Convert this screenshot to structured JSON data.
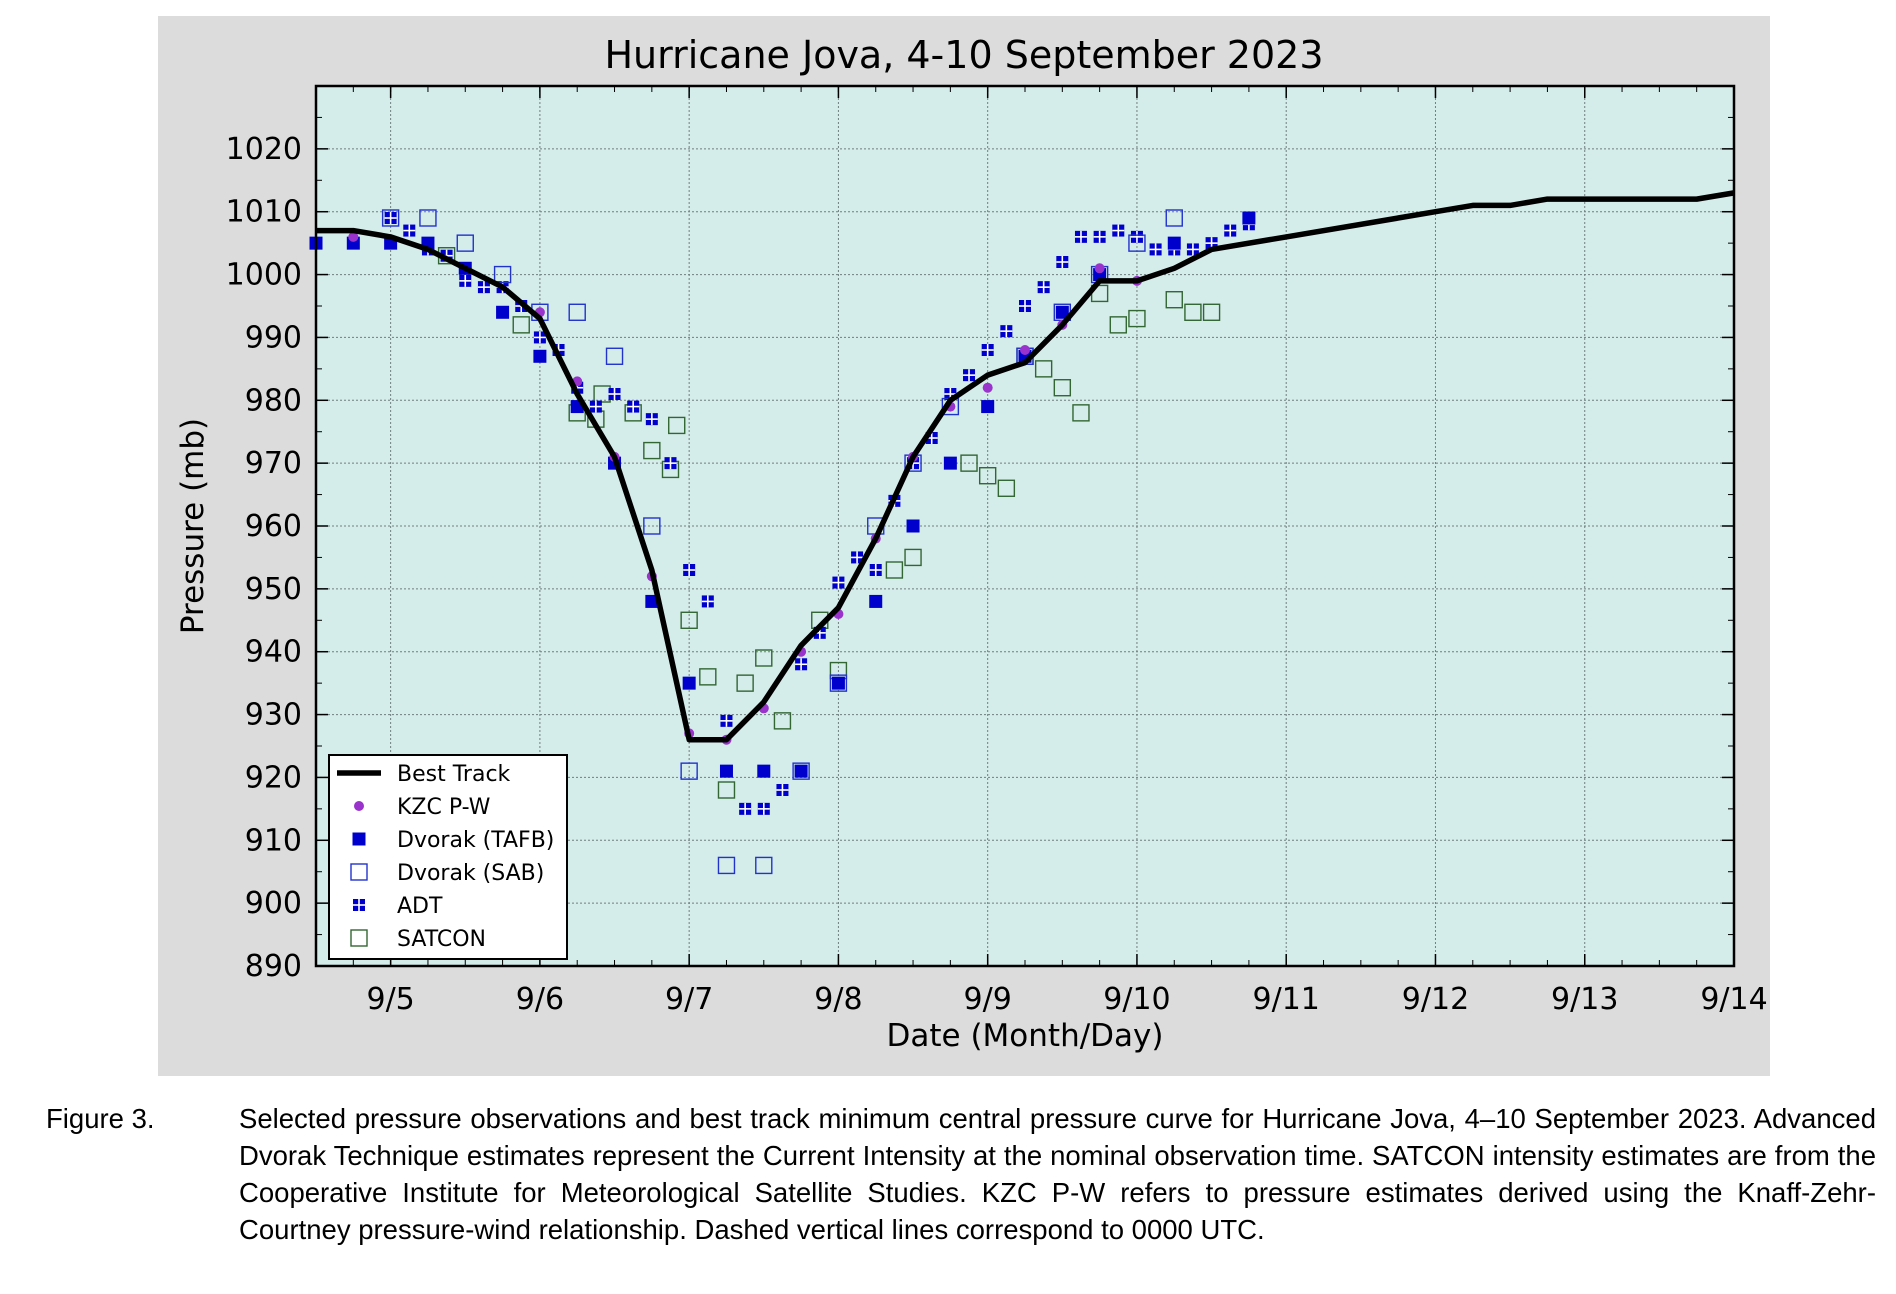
{
  "chart_data": {
    "type": "scatter",
    "title": "Hurricane Jova, 4-10 September 2023",
    "xlabel": "Date (Month/Day)",
    "ylabel": "Pressure (mb)",
    "xlim": [
      "2023-09-04 12:00",
      "2023-09-14 00:00"
    ],
    "ylim": [
      890,
      1030
    ],
    "x_ticks": [
      "9/5",
      "9/6",
      "9/7",
      "9/8",
      "9/9",
      "9/10",
      "9/11",
      "9/12",
      "9/13",
      "9/14"
    ],
    "y_ticks": [
      890,
      900,
      910,
      920,
      930,
      940,
      950,
      960,
      970,
      980,
      990,
      1000,
      1010,
      1020
    ],
    "grid": true,
    "legend_position": "lower-left",
    "background_color": "#d4ecea",
    "outer_background_color": "#dcdcdc",
    "series": [
      {
        "name": "Best Track",
        "style": "line",
        "color": "#000000",
        "points": [
          [
            "2023-09-04 12:00",
            1007
          ],
          [
            "2023-09-04 18:00",
            1007
          ],
          [
            "2023-09-05 00:00",
            1006
          ],
          [
            "2023-09-05 06:00",
            1004
          ],
          [
            "2023-09-05 12:00",
            1001
          ],
          [
            "2023-09-05 18:00",
            998
          ],
          [
            "2023-09-06 00:00",
            993
          ],
          [
            "2023-09-06 06:00",
            981
          ],
          [
            "2023-09-06 12:00",
            971
          ],
          [
            "2023-09-06 18:00",
            953
          ],
          [
            "2023-09-07 00:00",
            926
          ],
          [
            "2023-09-07 06:00",
            926
          ],
          [
            "2023-09-07 12:00",
            932
          ],
          [
            "2023-09-07 18:00",
            941
          ],
          [
            "2023-09-08 00:00",
            947
          ],
          [
            "2023-09-08 06:00",
            958
          ],
          [
            "2023-09-08 12:00",
            971
          ],
          [
            "2023-09-08 18:00",
            980
          ],
          [
            "2023-09-09 00:00",
            984
          ],
          [
            "2023-09-09 06:00",
            986
          ],
          [
            "2023-09-09 12:00",
            992
          ],
          [
            "2023-09-09 18:00",
            999
          ],
          [
            "2023-09-10 00:00",
            999
          ],
          [
            "2023-09-10 06:00",
            1001
          ],
          [
            "2023-09-10 12:00",
            1004
          ],
          [
            "2023-09-11 00:00",
            1006
          ],
          [
            "2023-09-12 00:00",
            1010
          ],
          [
            "2023-09-12 06:00",
            1011
          ],
          [
            "2023-09-12 12:00",
            1011
          ],
          [
            "2023-09-12 18:00",
            1012
          ],
          [
            "2023-09-13 00:00",
            1012
          ],
          [
            "2023-09-13 06:00",
            1012
          ],
          [
            "2023-09-13 12:00",
            1012
          ],
          [
            "2023-09-13 18:00",
            1012
          ],
          [
            "2023-09-14 00:00",
            1013
          ]
        ]
      },
      {
        "name": "KZC P-W",
        "style": "dot",
        "color": "#9933cc",
        "points": [
          [
            "2023-09-04 18:00",
            1006
          ],
          [
            "2023-09-06 00:00",
            994
          ],
          [
            "2023-09-06 06:00",
            983
          ],
          [
            "2023-09-06 12:00",
            971
          ],
          [
            "2023-09-06 18:00",
            952
          ],
          [
            "2023-09-07 00:00",
            927
          ],
          [
            "2023-09-07 06:00",
            926
          ],
          [
            "2023-09-07 12:00",
            931
          ],
          [
            "2023-09-07 18:00",
            940
          ],
          [
            "2023-09-08 00:00",
            946
          ],
          [
            "2023-09-08 06:00",
            958
          ],
          [
            "2023-09-08 12:00",
            971
          ],
          [
            "2023-09-08 18:00",
            979
          ],
          [
            "2023-09-09 00:00",
            982
          ],
          [
            "2023-09-09 06:00",
            988
          ],
          [
            "2023-09-09 12:00",
            992
          ],
          [
            "2023-09-09 18:00",
            1001
          ],
          [
            "2023-09-10 00:00",
            999
          ]
        ]
      },
      {
        "name": "Dvorak (TAFB)",
        "style": "filled-square",
        "color": "#0000cc",
        "points": [
          [
            "2023-09-04 12:00",
            1005
          ],
          [
            "2023-09-04 18:00",
            1005
          ],
          [
            "2023-09-05 00:00",
            1005
          ],
          [
            "2023-09-05 06:00",
            1005
          ],
          [
            "2023-09-05 12:00",
            1001
          ],
          [
            "2023-09-05 18:00",
            994
          ],
          [
            "2023-09-06 00:00",
            987
          ],
          [
            "2023-09-06 06:00",
            979
          ],
          [
            "2023-09-06 12:00",
            970
          ],
          [
            "2023-09-06 18:00",
            948
          ],
          [
            "2023-09-07 00:00",
            935
          ],
          [
            "2023-09-07 06:00",
            921
          ],
          [
            "2023-09-07 12:00",
            921
          ],
          [
            "2023-09-07 18:00",
            921
          ],
          [
            "2023-09-08 00:00",
            935
          ],
          [
            "2023-09-08 06:00",
            948
          ],
          [
            "2023-09-08 12:00",
            960
          ],
          [
            "2023-09-08 18:00",
            970
          ],
          [
            "2023-09-09 00:00",
            979
          ],
          [
            "2023-09-09 06:00",
            987
          ],
          [
            "2023-09-09 12:00",
            994
          ],
          [
            "2023-09-09 18:00",
            1000
          ],
          [
            "2023-09-10 06:00",
            1005
          ],
          [
            "2023-09-10 18:00",
            1009
          ]
        ]
      },
      {
        "name": "Dvorak (SAB)",
        "style": "open-square",
        "color": "#2233cc",
        "points": [
          [
            "2023-09-05 00:00",
            1009
          ],
          [
            "2023-09-05 06:00",
            1009
          ],
          [
            "2023-09-05 12:00",
            1005
          ],
          [
            "2023-09-05 18:00",
            1000
          ],
          [
            "2023-09-06 00:00",
            994
          ],
          [
            "2023-09-06 06:00",
            994
          ],
          [
            "2023-09-06 12:00",
            987
          ],
          [
            "2023-09-06 18:00",
            960
          ],
          [
            "2023-09-07 00:00",
            921
          ],
          [
            "2023-09-07 06:00",
            906
          ],
          [
            "2023-09-07 12:00",
            906
          ],
          [
            "2023-09-07 18:00",
            921
          ],
          [
            "2023-09-08 00:00",
            935
          ],
          [
            "2023-09-08 06:00",
            960
          ],
          [
            "2023-09-08 12:00",
            970
          ],
          [
            "2023-09-08 18:00",
            979
          ],
          [
            "2023-09-09 06:00",
            987
          ],
          [
            "2023-09-09 12:00",
            994
          ],
          [
            "2023-09-09 18:00",
            1000
          ],
          [
            "2023-09-10 00:00",
            1005
          ],
          [
            "2023-09-10 06:00",
            1009
          ]
        ]
      },
      {
        "name": "ADT",
        "style": "grid-square",
        "color": "#0000cc",
        "points": [
          [
            "2023-09-05 00:00",
            1009
          ],
          [
            "2023-09-05 03:00",
            1007
          ],
          [
            "2023-09-05 06:00",
            1004
          ],
          [
            "2023-09-05 09:00",
            1003
          ],
          [
            "2023-09-05 12:00",
            999
          ],
          [
            "2023-09-05 15:00",
            998
          ],
          [
            "2023-09-05 18:00",
            998
          ],
          [
            "2023-09-05 21:00",
            995
          ],
          [
            "2023-09-06 00:00",
            990
          ],
          [
            "2023-09-06 03:00",
            988
          ],
          [
            "2023-09-06 06:00",
            982
          ],
          [
            "2023-09-06 09:00",
            979
          ],
          [
            "2023-09-06 12:00",
            981
          ],
          [
            "2023-09-06 15:00",
            979
          ],
          [
            "2023-09-06 18:00",
            977
          ],
          [
            "2023-09-06 21:00",
            970
          ],
          [
            "2023-09-07 00:00",
            953
          ],
          [
            "2023-09-07 03:00",
            948
          ],
          [
            "2023-09-07 06:00",
            929
          ],
          [
            "2023-09-07 09:00",
            915
          ],
          [
            "2023-09-07 12:00",
            915
          ],
          [
            "2023-09-07 15:00",
            918
          ],
          [
            "2023-09-07 18:00",
            938
          ],
          [
            "2023-09-07 21:00",
            943
          ],
          [
            "2023-09-08 00:00",
            951
          ],
          [
            "2023-09-08 03:00",
            955
          ],
          [
            "2023-09-08 06:00",
            953
          ],
          [
            "2023-09-08 09:00",
            964
          ],
          [
            "2023-09-08 12:00",
            970
          ],
          [
            "2023-09-08 15:00",
            974
          ],
          [
            "2023-09-08 18:00",
            981
          ],
          [
            "2023-09-08 21:00",
            984
          ],
          [
            "2023-09-09 00:00",
            988
          ],
          [
            "2023-09-09 03:00",
            991
          ],
          [
            "2023-09-09 06:00",
            995
          ],
          [
            "2023-09-09 09:00",
            998
          ],
          [
            "2023-09-09 12:00",
            1002
          ],
          [
            "2023-09-09 15:00",
            1006
          ],
          [
            "2023-09-09 18:00",
            1006
          ],
          [
            "2023-09-09 21:00",
            1007
          ],
          [
            "2023-09-10 00:00",
            1006
          ],
          [
            "2023-09-10 03:00",
            1004
          ],
          [
            "2023-09-10 06:00",
            1004
          ],
          [
            "2023-09-10 09:00",
            1004
          ],
          [
            "2023-09-10 12:00",
            1005
          ],
          [
            "2023-09-10 15:00",
            1007
          ],
          [
            "2023-09-10 18:00",
            1008
          ]
        ]
      },
      {
        "name": "SATCON",
        "style": "open-square",
        "color": "#336633",
        "points": [
          [
            "2023-09-05 09:00",
            1003
          ],
          [
            "2023-09-05 21:00",
            992
          ],
          [
            "2023-09-06 06:00",
            978
          ],
          [
            "2023-09-06 09:00",
            977
          ],
          [
            "2023-09-06 10:00",
            981
          ],
          [
            "2023-09-06 15:00",
            978
          ],
          [
            "2023-09-06 18:00",
            972
          ],
          [
            "2023-09-06 21:00",
            969
          ],
          [
            "2023-09-06 22:00",
            976
          ],
          [
            "2023-09-07 00:00",
            945
          ],
          [
            "2023-09-07 03:00",
            936
          ],
          [
            "2023-09-07 06:00",
            918
          ],
          [
            "2023-09-07 09:00",
            935
          ],
          [
            "2023-09-07 12:00",
            939
          ],
          [
            "2023-09-07 15:00",
            929
          ],
          [
            "2023-09-07 21:00",
            945
          ],
          [
            "2023-09-08 00:00",
            937
          ],
          [
            "2023-09-08 09:00",
            953
          ],
          [
            "2023-09-08 12:00",
            955
          ],
          [
            "2023-09-08 21:00",
            970
          ],
          [
            "2023-09-09 00:00",
            968
          ],
          [
            "2023-09-09 03:00",
            966
          ],
          [
            "2023-09-09 06:00",
            987
          ],
          [
            "2023-09-09 09:00",
            985
          ],
          [
            "2023-09-09 12:00",
            982
          ],
          [
            "2023-09-09 15:00",
            978
          ],
          [
            "2023-09-09 18:00",
            997
          ],
          [
            "2023-09-09 21:00",
            992
          ],
          [
            "2023-09-10 00:00",
            993
          ],
          [
            "2023-09-10 06:00",
            996
          ],
          [
            "2023-09-10 09:00",
            994
          ],
          [
            "2023-09-10 12:00",
            994
          ]
        ]
      }
    ]
  },
  "caption": {
    "label": "Figure 3.",
    "text": "Selected pressure observations and best track minimum central pressure curve for Hurricane Jova, 4–10 September 2023. Advanced Dvorak Technique estimates represent the Current Intensity at the nominal observation time.  SATCON intensity estimates are from the Cooperative Institute for Meteorological Satellite Studies.  KZC P-W refers to pressure estimates derived using the Knaff-Zehr-Courtney pressure-wind relationship.  Dashed vertical lines correspond to 0000 UTC."
  }
}
